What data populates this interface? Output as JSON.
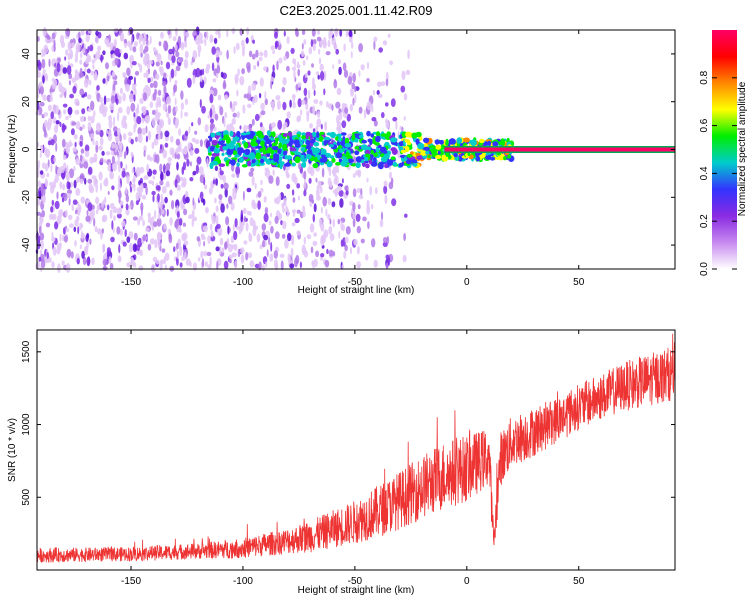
{
  "title": "C2E3.2025.001.11.42.R09",
  "chart_data": [
    {
      "type": "heatmap",
      "xlabel": "Height of straight line (km)",
      "ylabel": "Frequency (Hz)",
      "xlim": [
        -192,
        93
      ],
      "ylim": [
        -50,
        50
      ],
      "x_ticks": [
        -150,
        -100,
        -50,
        0,
        50
      ],
      "y_ticks": [
        -40,
        -20,
        0,
        20,
        40
      ],
      "colorbar": {
        "label": "Normalized spectral amplitude",
        "range": [
          0,
          1
        ],
        "ticks": [
          0.0,
          0.2,
          0.4,
          0.6,
          0.8
        ],
        "tick_labels": [
          "0.0",
          "0.2",
          "0.4",
          "0.6",
          "0.8"
        ],
        "colors": [
          "#ffffff",
          "#c78af0",
          "#8a2be2",
          "#3333ff",
          "#00cccc",
          "#00ee00",
          "#ffff00",
          "#ff8800",
          "#ff0000",
          "#ff0066"
        ]
      },
      "features": {
        "noise_region_x": [
          -192,
          -50
        ],
        "noise_sparse_x": [
          -50,
          -25
        ],
        "central_band_frequency": 0,
        "signal_band_x": [
          -115,
          20
        ],
        "strong_line_x": [
          -10,
          93
        ],
        "strong_line_amplitude": 0.95
      },
      "grid": false
    },
    {
      "type": "line",
      "xlabel": "Height of straight line (km)",
      "ylabel": "SNR (10 * v/v)",
      "xlim": [
        -192,
        93
      ],
      "ylim": [
        0,
        1650
      ],
      "x_ticks": [
        -150,
        -100,
        -50,
        0,
        50
      ],
      "y_ticks": [
        500,
        1000,
        1500
      ],
      "series": [
        {
          "color": "#ee3333",
          "envelope": {
            "x": [
              -192,
              -150,
              -120,
              -100,
              -80,
              -70,
              -60,
              -50,
              -40,
              -30,
              -20,
              -10,
              0,
              10,
              12,
              15,
              20,
              30,
              40,
              50,
              60,
              70,
              80,
              93
            ],
            "mean": [
              100,
              110,
              130,
              150,
              200,
              230,
              280,
              330,
              400,
              480,
              570,
              650,
              700,
              780,
              180,
              760,
              880,
              950,
              1030,
              1120,
              1190,
              1260,
              1300,
              1360
            ],
            "spread": [
              50,
              50,
              55,
              70,
              90,
              110,
              130,
              150,
              180,
              200,
              220,
              240,
              230,
              200,
              100,
              190,
              180,
              170,
              160,
              160,
              160,
              170,
              180,
              190
            ]
          }
        }
      ],
      "grid": false
    }
  ]
}
